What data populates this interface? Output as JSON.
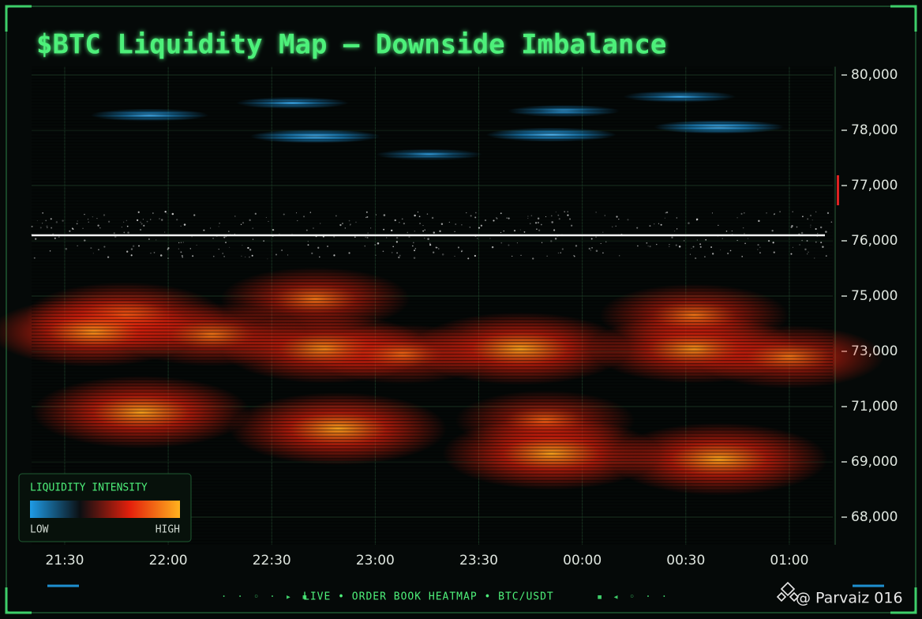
{
  "chart_data": {
    "type": "heatmap",
    "title": "$BTC Liquidity Map – Downside Imbalance",
    "xlim": [
      21.34,
      25.21
    ],
    "xticks": [
      {
        "value": 21.5,
        "label": "21:30"
      },
      {
        "value": 22,
        "label": "22:00"
      },
      {
        "value": 22.5,
        "label": "22:30"
      },
      {
        "value": 23,
        "label": "23:00"
      },
      {
        "value": 23.5,
        "label": "23:30"
      },
      {
        "value": 24,
        "label": "00:00"
      },
      {
        "value": 24.5,
        "label": "00:30"
      },
      {
        "value": 25,
        "label": "01:00"
      }
    ],
    "ylim": [
      67500,
      80300
    ],
    "yticks": [
      {
        "value": 80000,
        "label": "80,000"
      },
      {
        "value": 78000,
        "label": "78,000"
      },
      {
        "value": 77000,
        "label": "77,000"
      },
      {
        "value": 76000,
        "label": "76,000"
      },
      {
        "value": 75000,
        "label": "75,000"
      },
      {
        "value": 73000,
        "label": "73,000"
      },
      {
        "value": 71000,
        "label": "71,000"
      },
      {
        "value": 69000,
        "label": "69,000"
      },
      {
        "value": 68000,
        "label": "68,000"
      }
    ],
    "grid": true,
    "current_price": 76100,
    "price_line_color": "#f2f2f2",
    "colorscale": [
      "#1e9be6",
      "#0b0f12",
      "#e3200c",
      "#ffb21e"
    ],
    "ask_clusters": {
      "x": [
        21.91,
        22.6,
        22.71,
        23.26,
        23.85,
        23.91,
        24.47,
        24.66
      ],
      "y": [
        78550,
        78990,
        77890,
        77560,
        77920,
        78700,
        79220,
        78120
      ],
      "intensity": [
        0.6,
        0.5,
        0.8,
        0.4,
        0.8,
        0.5,
        0.5,
        0.8
      ]
    },
    "bid_clusters": {
      "x": [
        21.79,
        21.64,
        22.21,
        22.71,
        22.76,
        23.13,
        23.7,
        24.54,
        24.54,
        25.0,
        21.87,
        22.82,
        23.82,
        23.85,
        24.66
      ],
      "y": [
        74300,
        73700,
        73600,
        74900,
        73100,
        72900,
        73100,
        73100,
        74300,
        72800,
        70800,
        70200,
        70500,
        69300,
        69100
      ],
      "intensity": [
        0.7,
        0.8,
        0.6,
        0.6,
        0.8,
        0.5,
        0.9,
        0.8,
        0.6,
        0.6,
        0.9,
        0.9,
        0.5,
        0.9,
        0.9
      ]
    },
    "legend": {
      "title": "LIQUIDITY INTENSITY",
      "low": "LOW",
      "high": "HIGH"
    },
    "footer": "LIVE • ORDER BOOK HEATMAP • BTC/USDT",
    "watermark": "@ Parvaiz 016"
  }
}
